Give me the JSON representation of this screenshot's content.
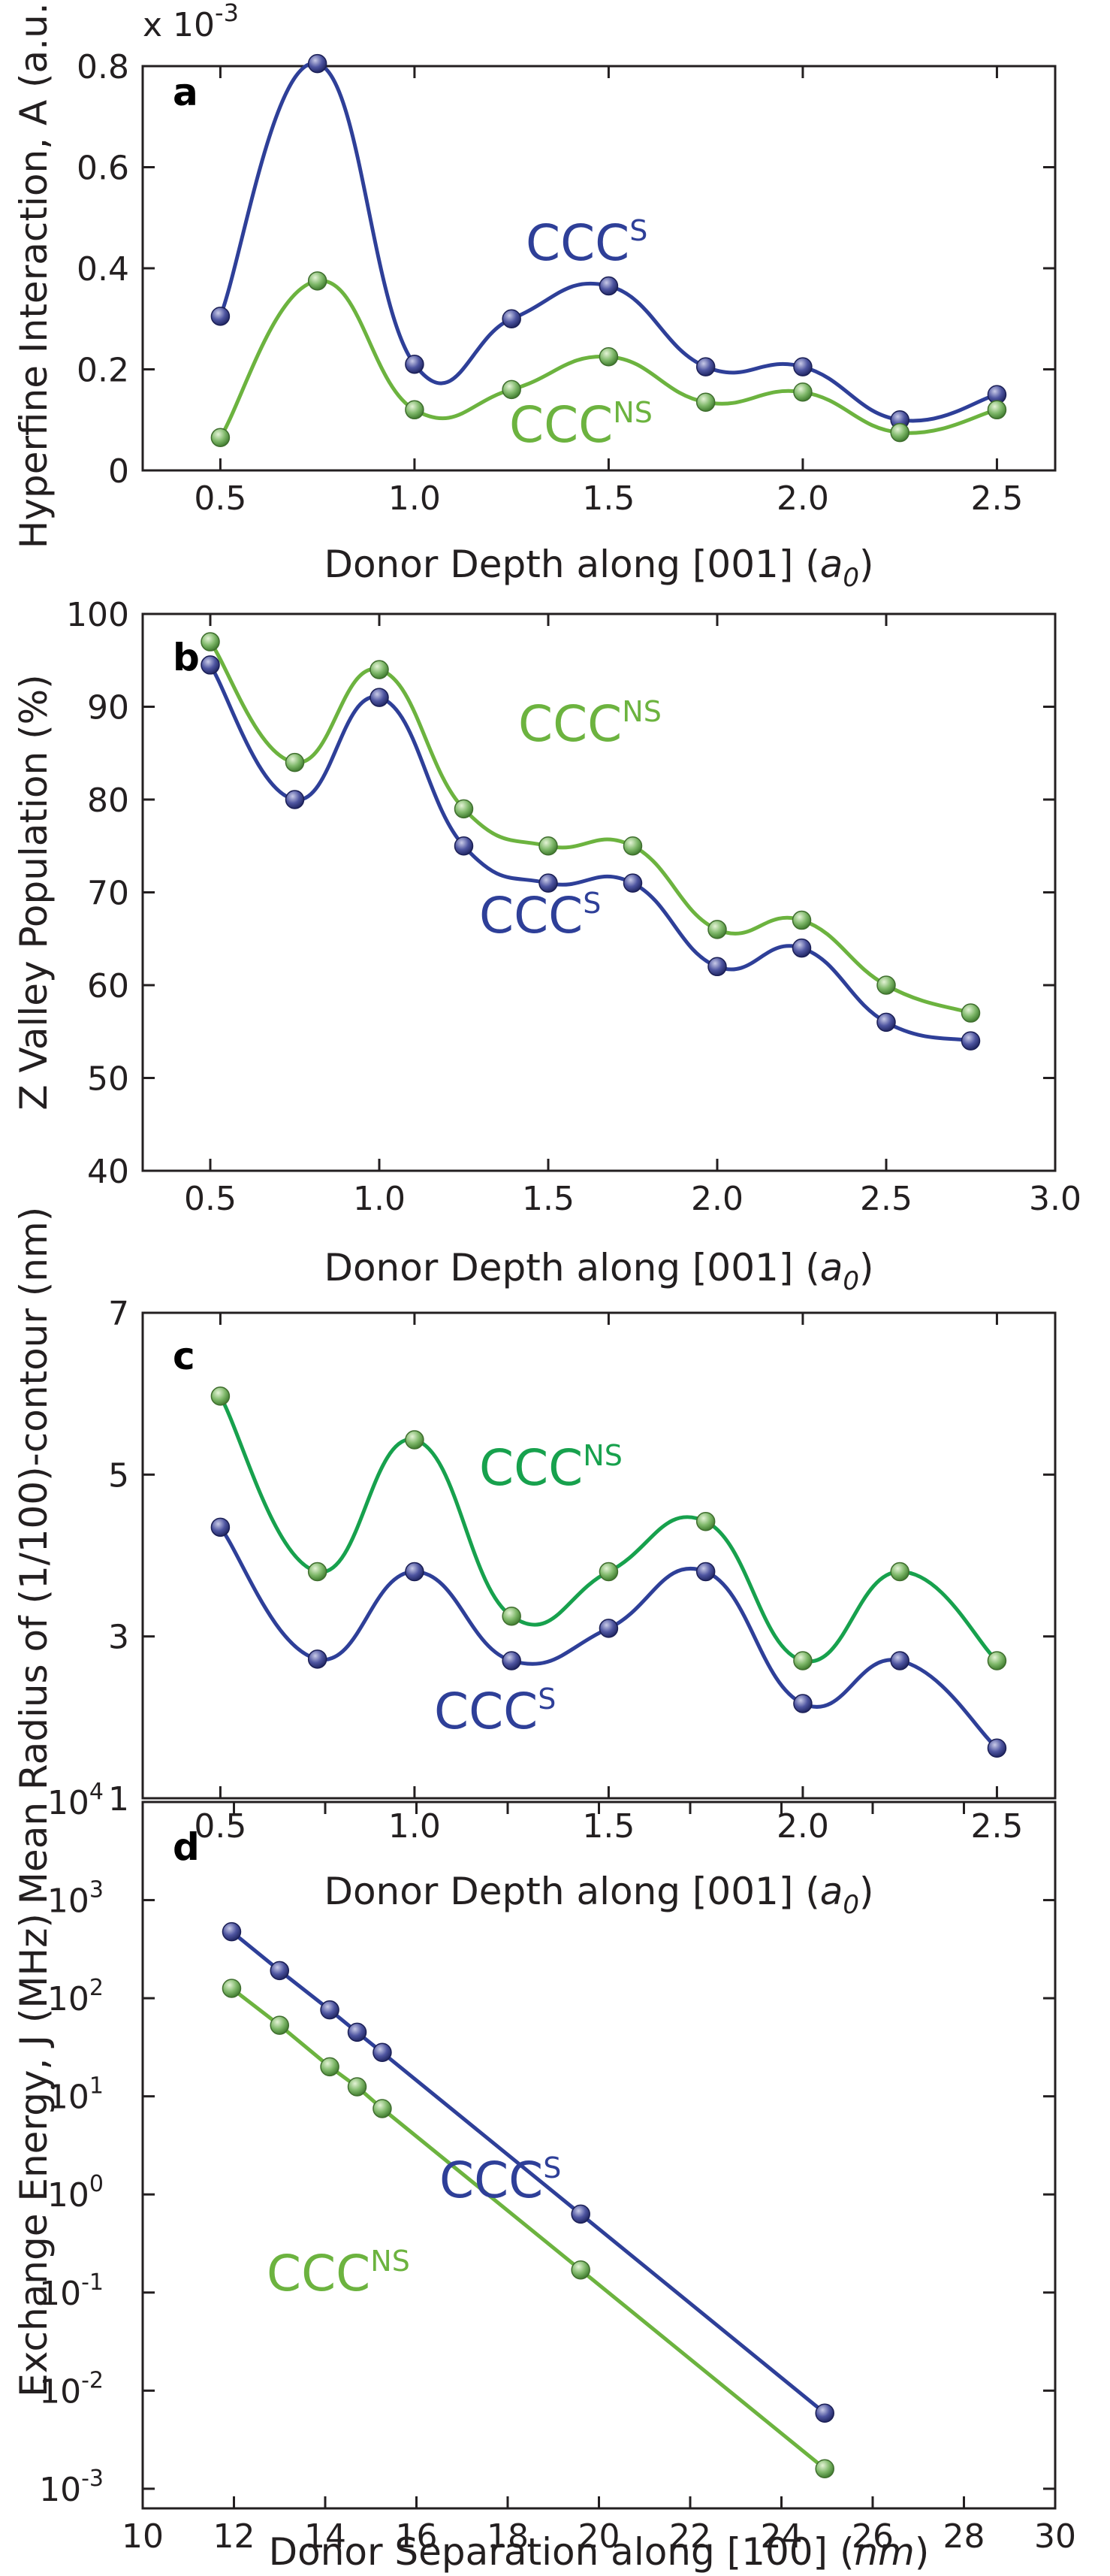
{
  "colors": {
    "ccc_s": "#2e3f98",
    "ccc_ns": "#6cb33f",
    "ccc_ns_panel_c": "#17a14d",
    "marker_s_fill": "#4e55a0",
    "marker_ns_fill": "#7fb86a",
    "axis": "#231f20"
  },
  "chart_data": [
    {
      "panel": "a",
      "type": "line",
      "xlabel": "Donor Depth along [001] (",
      "xlabel_unit": "a",
      "xlabel_sub": "0",
      "xlabel_close": ")",
      "ylabel": "Hyperfine Interaction, A (a.u.)",
      "scale_label": "x 10",
      "scale_exp": "-3",
      "xlim": [
        0.3,
        2.65
      ],
      "ylim": [
        0,
        0.8
      ],
      "xticks": [
        0.5,
        1.0,
        1.5,
        2.0,
        2.5
      ],
      "xticklabels": [
        "0.5",
        "1.0",
        "1.5",
        "2.0",
        "2.5"
      ],
      "yticks": [
        0,
        0.2,
        0.4,
        0.6,
        0.8
      ],
      "yticklabels": [
        "0",
        "0.2",
        "0.4",
        "0.6",
        "0.8"
      ],
      "series": [
        {
          "name": "CCC",
          "sup": "S",
          "key": "s",
          "x": [
            0.5,
            0.75,
            1.0,
            1.25,
            1.5,
            1.75,
            2.0,
            2.25,
            2.5
          ],
          "values": [
            0.305,
            0.805,
            0.21,
            0.3,
            0.365,
            0.205,
            0.205,
            0.1,
            0.15
          ]
        },
        {
          "name": "CCC",
          "sup": "NS",
          "key": "ns",
          "x": [
            0.5,
            0.75,
            1.0,
            1.25,
            1.5,
            1.75,
            2.0,
            2.25,
            2.5
          ],
          "values": [
            0.065,
            0.375,
            0.12,
            0.16,
            0.225,
            0.135,
            0.155,
            0.075,
            0.12
          ]
        }
      ]
    },
    {
      "panel": "b",
      "type": "line",
      "xlabel": "Donor Depth along [001] (",
      "xlabel_unit": "a",
      "xlabel_sub": "0",
      "xlabel_close": ")",
      "ylabel": "Z Valley Population (%)",
      "xlim": [
        0.3,
        3.0
      ],
      "ylim": [
        40,
        100
      ],
      "xticks": [
        0.5,
        1.0,
        1.5,
        2.0,
        2.5,
        3.0
      ],
      "xticklabels": [
        "0.5",
        "1.0",
        "1.5",
        "2.0",
        "2.5",
        "3.0"
      ],
      "yticks": [
        40,
        50,
        60,
        70,
        80,
        90,
        100
      ],
      "yticklabels": [
        "40",
        "50",
        "60",
        "70",
        "80",
        "90",
        "100"
      ],
      "series": [
        {
          "name": "CCC",
          "sup": "S",
          "key": "s",
          "x": [
            0.5,
            0.75,
            1.0,
            1.25,
            1.5,
            1.75,
            2.0,
            2.25,
            2.5,
            2.75
          ],
          "values": [
            94.5,
            80,
            91,
            75,
            71,
            71,
            62,
            64,
            56,
            54
          ]
        },
        {
          "name": "CCC",
          "sup": "NS",
          "key": "ns",
          "x": [
            0.5,
            0.75,
            1.0,
            1.25,
            1.5,
            1.75,
            2.0,
            2.25,
            2.5,
            2.75
          ],
          "values": [
            97,
            84,
            94,
            79,
            75,
            75,
            66,
            67,
            60,
            57
          ]
        }
      ]
    },
    {
      "panel": "c",
      "type": "line",
      "xlabel": "Donor Depth along [001] (",
      "xlabel_unit": "a",
      "xlabel_sub": "0",
      "xlabel_close": ")",
      "ylabel": "Mean Radius of (1/100)-contour (nm)",
      "xlim": [
        0.3,
        2.65
      ],
      "ylim": [
        1,
        7
      ],
      "xticks": [
        0.5,
        1.0,
        1.5,
        2.0,
        2.5
      ],
      "xticklabels": [
        "0.5",
        "1.0",
        "1.5",
        "2.0",
        "2.5"
      ],
      "yticks": [
        1,
        3,
        5,
        7
      ],
      "yticklabels": [
        "1",
        "3",
        "5",
        "7"
      ],
      "series": [
        {
          "name": "CCC",
          "sup": "S",
          "key": "s",
          "x": [
            0.5,
            0.75,
            1.0,
            1.25,
            1.5,
            1.75,
            2.0,
            2.25,
            2.5
          ],
          "values": [
            4.35,
            2.72,
            3.8,
            2.7,
            3.1,
            3.8,
            2.17,
            2.7,
            1.62
          ]
        },
        {
          "name": "CCC",
          "sup": "NS",
          "key": "ns",
          "x": [
            0.5,
            0.75,
            1.0,
            1.25,
            1.5,
            1.75,
            2.0,
            2.25,
            2.5
          ],
          "values": [
            5.97,
            3.8,
            5.43,
            3.25,
            3.8,
            4.42,
            2.7,
            3.8,
            2.7
          ]
        }
      ]
    },
    {
      "panel": "d",
      "type": "line",
      "xlabel": "Donor Separation along [100] (",
      "xlabel_unit": "nm",
      "xlabel_sub": "",
      "xlabel_close": ")",
      "ylabel": "Exchange Energy, J (MHz)",
      "yscale": "log",
      "xlim": [
        10,
        30
      ],
      "ylim": [
        -3.2,
        4
      ],
      "xticks": [
        10,
        12,
        14,
        16,
        18,
        20,
        22,
        24,
        26,
        28,
        30
      ],
      "xticklabels": [
        "10",
        "12",
        "14",
        "16",
        "18",
        "20",
        "22",
        "24",
        "26",
        "28",
        "30"
      ],
      "yticks": [
        -3,
        -2,
        -1,
        0,
        1,
        2,
        3,
        4
      ],
      "yticklabels": [
        "10",
        "10",
        "10",
        "10",
        "10",
        "10",
        "10",
        "10"
      ],
      "yticklabel_exps": [
        "-3",
        "-2",
        "-1",
        "0",
        "1",
        "2",
        "3",
        "4"
      ],
      "series": [
        {
          "name": "CCC",
          "sup": "S",
          "key": "s",
          "x": [
            11.95,
            13.0,
            14.1,
            14.7,
            15.25,
            19.6,
            24.95
          ],
          "values": [
            476,
            191,
            76,
            45,
            28,
            0.63,
            0.0059
          ]
        },
        {
          "name": "CCC",
          "sup": "NS",
          "key": "ns",
          "x": [
            11.95,
            13.0,
            14.1,
            14.7,
            15.25,
            19.6,
            24.95
          ],
          "values": [
            126,
            53,
            20,
            12.5,
            7.5,
            0.17,
            0.0016
          ]
        }
      ]
    }
  ]
}
